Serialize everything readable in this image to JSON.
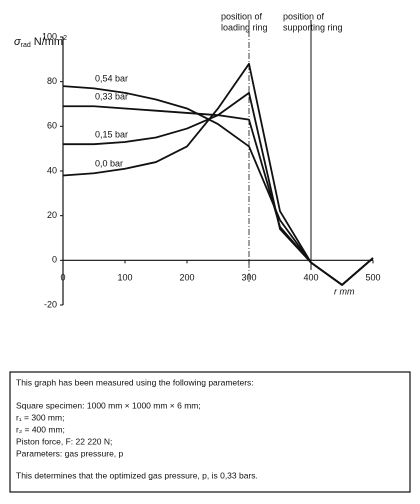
{
  "chart_data": {
    "type": "line",
    "y_label": {
      "symbol": "σ",
      "subscript": "rad",
      "unit": "N/mm",
      "superscript": "2"
    },
    "x_label": "r mm",
    "x": [
      0,
      50,
      100,
      150,
      200,
      250,
      300,
      350,
      400,
      450,
      500
    ],
    "series": [
      {
        "name": "0,54 bar",
        "color": "#111111",
        "values": [
          78,
          77,
          75,
          72,
          68,
          61,
          51,
          18,
          -1,
          -11,
          1
        ]
      },
      {
        "name": "0,33 bar",
        "color": "#111111",
        "values": [
          69,
          69,
          68,
          67,
          66,
          65,
          63,
          15,
          -1,
          -11,
          1
        ]
      },
      {
        "name": "0,15 bar",
        "color": "#111111",
        "values": [
          52,
          52,
          53,
          55,
          59,
          65,
          75,
          14,
          -1,
          -11,
          1
        ]
      },
      {
        "name": "0,0 bar",
        "color": "#111111",
        "values": [
          38,
          39,
          41,
          44,
          51,
          68,
          88,
          22,
          -1,
          -11,
          1
        ]
      }
    ],
    "xlim": [
      0,
      500
    ],
    "xticks": [
      0,
      100,
      200,
      300,
      400,
      500
    ],
    "ylim": [
      -20,
      100
    ],
    "yticks": [
      -20,
      0,
      20,
      40,
      60,
      80,
      100
    ],
    "annotations": [
      {
        "x": 300,
        "lines": [
          "position of",
          "loading ring"
        ],
        "dashed": true
      },
      {
        "x": 400,
        "lines": [
          "position of",
          "supporting ring"
        ],
        "dashed": false
      }
    ]
  },
  "parameter_box": {
    "lines": [
      "This graph has been measured using the following parameters:",
      "Square specimen:  1000 mm × 1000 mm × 6 mm;",
      "r₁ = 300 mm;",
      "r₂ = 400 mm;",
      "Piston force,  F:  22 220 N;",
      "Parameters: gas pressure, p",
      "This determines that the optimized gas pressure, p, is 0,33 bars."
    ]
  }
}
